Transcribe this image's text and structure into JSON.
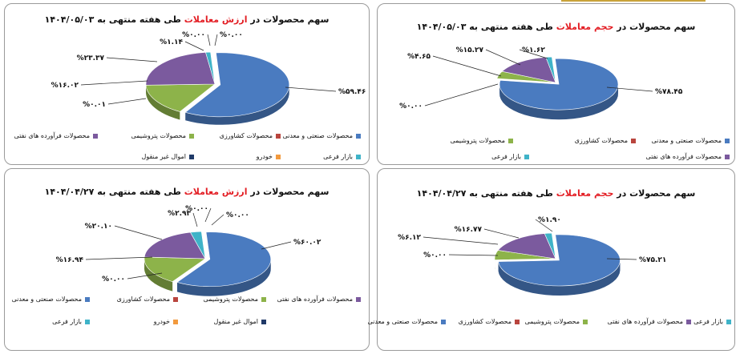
{
  "colors": {
    "industrial": "#4a7bc0",
    "agri": "#b9453e",
    "petro": "#8db34a",
    "oilprod": "#7b5a9e",
    "secondary": "#3fb3c8",
    "auto": "#f29a3e",
    "realestate": "#203a68"
  },
  "categories": {
    "industrial": "محصولات صنعتی و معدنی",
    "agri": "محصولات کشاورزی",
    "petro": "محصولات پتروشیمی",
    "oilprod": "محصولات فرآورده های نفتی",
    "secondary": "بازار فرعی",
    "auto": "خودرو",
    "realestate": "اموال غیر منقول"
  },
  "chart_data": [
    {
      "type": "pie",
      "title_prefix": "سهم محصولات در ",
      "title_highlight": "ارزش معاملات",
      "title_suffix": " طی هفته منتهی به ۱۴۰۴/۰۵/۰۳",
      "labels": [
        "%۵۹.۴۶",
        "%۰.۰۱",
        "%۱۶.۰۲",
        "%۲۳.۳۷",
        "%۱.۱۴",
        "%۰.۰۰",
        "%۰.۰۰"
      ],
      "series": [
        {
          "key": "industrial",
          "value": 59.46
        },
        {
          "key": "agri",
          "value": 0.01
        },
        {
          "key": "petro",
          "value": 16.02
        },
        {
          "key": "oilprod",
          "value": 23.37
        },
        {
          "key": "secondary",
          "value": 1.14
        },
        {
          "key": "auto",
          "value": 0.0
        },
        {
          "key": "realestate",
          "value": 0.0
        }
      ]
    },
    {
      "type": "pie",
      "title_prefix": "سهم محصولات در ",
      "title_highlight": "حجم معاملات",
      "title_suffix": "  طی هفته منتهی به ۱۴۰۴/۰۵/۰۳",
      "labels": [
        "%۷۸.۴۵",
        "%۰.۰۰",
        "%۴.۶۵",
        "%۱۵.۲۷",
        "%۱.۶۲"
      ],
      "series": [
        {
          "key": "industrial",
          "value": 78.45
        },
        {
          "key": "agri",
          "value": 0.0
        },
        {
          "key": "petro",
          "value": 4.65
        },
        {
          "key": "oilprod",
          "value": 15.27
        },
        {
          "key": "secondary",
          "value": 1.62
        }
      ]
    },
    {
      "type": "pie",
      "title_prefix": "سهم محصولات در ",
      "title_highlight": "ارزش معاملات",
      "title_suffix": " طی هفته منتهی به ۱۴۰۴/۰۴/۲۷",
      "labels": [
        "%۶۰.۰۲",
        "%۰.۰۰",
        "%۱۶.۹۴",
        "%۲۰.۱۰",
        "%۲.۹۳",
        "%۰.۰۰",
        "%۰.۰۰"
      ],
      "series": [
        {
          "key": "industrial",
          "value": 60.02
        },
        {
          "key": "agri",
          "value": 0.0
        },
        {
          "key": "petro",
          "value": 16.94
        },
        {
          "key": "oilprod",
          "value": 20.1
        },
        {
          "key": "secondary",
          "value": 2.93
        },
        {
          "key": "auto",
          "value": 0.0
        },
        {
          "key": "realestate",
          "value": 0.0
        }
      ]
    },
    {
      "type": "pie",
      "title_prefix": "سهم محصولات در ",
      "title_highlight": "حجم معاملات",
      "title_suffix": "  طی هفته منتهی به ۱۴۰۴/۰۴/۲۷",
      "labels": [
        "%۷۵.۲۱",
        "%۰.۰۰",
        "%۶.۱۲",
        "%۱۶.۷۷",
        "%۱.۹۰"
      ],
      "series": [
        {
          "key": "industrial",
          "value": 75.21
        },
        {
          "key": "agri",
          "value": 0.0
        },
        {
          "key": "petro",
          "value": 6.12
        },
        {
          "key": "oilprod",
          "value": 16.77
        },
        {
          "key": "secondary",
          "value": 1.9
        }
      ]
    }
  ]
}
